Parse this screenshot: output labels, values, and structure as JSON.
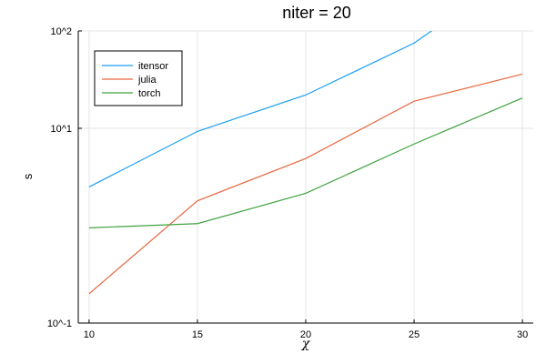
{
  "chart_data": {
    "type": "line",
    "title": "niter = 20",
    "xlabel": "χ",
    "ylabel": "s",
    "yscale": "log",
    "xlim": [
      9.5,
      30.5
    ],
    "ylim": [
      0.1,
      100
    ],
    "grid": true,
    "legend_position": "top-left",
    "x_ticks": [
      10,
      15,
      20,
      25,
      30
    ],
    "x_tick_labels": [
      "10",
      "15",
      "20",
      "25",
      "30"
    ],
    "y_ticks": [
      0.1,
      10,
      100
    ],
    "y_tick_labels": [
      "10^-1",
      "10^1",
      "10^2"
    ],
    "x": [
      10,
      15,
      20,
      25,
      30
    ],
    "series": [
      {
        "name": "itensor",
        "color": "#1a9ef2",
        "values": [
          2.5,
          9.3,
          22,
          75,
          450
        ]
      },
      {
        "name": "julia",
        "color": "#e8683f",
        "values": [
          0.2,
          1.8,
          4.9,
          19,
          36
        ]
      },
      {
        "name": "torch",
        "color": "#3ea23e",
        "values": [
          0.95,
          1.05,
          2.15,
          6.9,
          20.5
        ]
      }
    ]
  }
}
